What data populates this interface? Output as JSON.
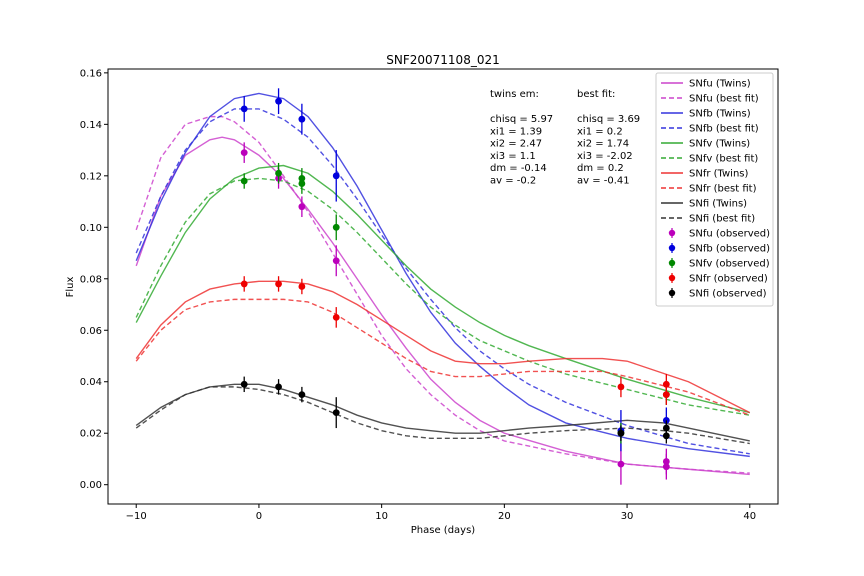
{
  "chart_data": {
    "type": "line",
    "title": "SNF20071108_021",
    "xlabel": "Phase (days)",
    "ylabel": "Flux",
    "xlim": [
      -12.3,
      42.3
    ],
    "ylim": [
      -0.0075,
      0.1615
    ],
    "xticks": [
      -10,
      0,
      10,
      20,
      30,
      40
    ],
    "yticks": [
      0.0,
      0.02,
      0.04,
      0.06,
      0.08,
      0.1,
      0.12,
      0.14,
      0.16
    ],
    "grid": false,
    "legend_position": "top-right",
    "annotations": {
      "left_title": "twins em:",
      "left_lines": [
        "chisq = 5.97",
        "xi1 = 1.39",
        "xi2 = 2.47",
        "xi3 = 1.1",
        "dm = -0.14",
        "av = -0.2"
      ],
      "right_title": "best fit:",
      "right_lines": [
        "chisq = 3.69",
        "xi1 = 0.2",
        "xi2 = 1.74",
        "xi3 = -2.02",
        "dm = 0.2",
        "av = -0.41"
      ]
    },
    "series": [
      {
        "name": "SNfu (Twins)",
        "color": "#cc44cc",
        "style": "solid",
        "x": [
          -10,
          -8,
          -6,
          -4,
          -3,
          -2,
          0,
          2,
          4,
          6,
          8,
          10,
          12,
          14,
          16,
          18,
          20,
          25,
          30,
          35,
          40
        ],
        "y": [
          0.085,
          0.112,
          0.128,
          0.134,
          0.135,
          0.134,
          0.128,
          0.119,
          0.107,
          0.094,
          0.08,
          0.066,
          0.053,
          0.041,
          0.032,
          0.025,
          0.02,
          0.013,
          0.008,
          0.006,
          0.004
        ]
      },
      {
        "name": "SNfu (best fit)",
        "color": "#cc44cc",
        "style": "dashed",
        "x": [
          -10,
          -8,
          -6,
          -4,
          -3,
          -2,
          0,
          2,
          4,
          6,
          8,
          10,
          12,
          14,
          16,
          18,
          20,
          25,
          30,
          35,
          40
        ],
        "y": [
          0.099,
          0.127,
          0.14,
          0.143,
          0.143,
          0.141,
          0.133,
          0.12,
          0.106,
          0.09,
          0.074,
          0.058,
          0.045,
          0.035,
          0.027,
          0.021,
          0.017,
          0.012,
          0.008,
          0.006,
          0.0045
        ]
      },
      {
        "name": "SNfb (Twins)",
        "color": "#3333dd",
        "style": "solid",
        "x": [
          -10,
          -8,
          -6,
          -4,
          -2,
          0,
          2,
          4,
          6,
          8,
          10,
          12,
          14,
          16,
          18,
          20,
          22,
          25,
          30,
          35,
          40
        ],
        "y": [
          0.087,
          0.11,
          0.129,
          0.143,
          0.15,
          0.152,
          0.15,
          0.143,
          0.131,
          0.116,
          0.099,
          0.082,
          0.067,
          0.055,
          0.046,
          0.038,
          0.031,
          0.024,
          0.018,
          0.014,
          0.011
        ]
      },
      {
        "name": "SNfb (best fit)",
        "color": "#3333dd",
        "style": "dashed",
        "x": [
          -10,
          -8,
          -6,
          -4,
          -2,
          0,
          2,
          4,
          6,
          8,
          10,
          12,
          14,
          16,
          18,
          20,
          22,
          25,
          30,
          35,
          40
        ],
        "y": [
          0.09,
          0.112,
          0.13,
          0.141,
          0.146,
          0.146,
          0.142,
          0.135,
          0.124,
          0.111,
          0.097,
          0.084,
          0.072,
          0.061,
          0.052,
          0.045,
          0.039,
          0.032,
          0.023,
          0.016,
          0.012
        ]
      },
      {
        "name": "SNfv (Twins)",
        "color": "#33aa33",
        "style": "solid",
        "x": [
          -10,
          -8,
          -6,
          -4,
          -2,
          0,
          2,
          4,
          6,
          8,
          10,
          12,
          14,
          16,
          18,
          20,
          22,
          25,
          30,
          35,
          40
        ],
        "y": [
          0.063,
          0.081,
          0.098,
          0.111,
          0.119,
          0.123,
          0.124,
          0.121,
          0.114,
          0.105,
          0.095,
          0.085,
          0.076,
          0.069,
          0.063,
          0.058,
          0.054,
          0.049,
          0.041,
          0.034,
          0.028
        ]
      },
      {
        "name": "SNfv (best fit)",
        "color": "#33aa33",
        "style": "dashed",
        "x": [
          -10,
          -8,
          -6,
          -4,
          -2,
          0,
          2,
          4,
          6,
          8,
          10,
          12,
          14,
          16,
          18,
          20,
          22,
          25,
          30,
          35,
          40
        ],
        "y": [
          0.065,
          0.085,
          0.102,
          0.113,
          0.118,
          0.119,
          0.118,
          0.114,
          0.107,
          0.098,
          0.088,
          0.078,
          0.069,
          0.062,
          0.056,
          0.052,
          0.048,
          0.043,
          0.037,
          0.031,
          0.027
        ]
      },
      {
        "name": "SNfr (Twins)",
        "color": "#ee3333",
        "style": "solid",
        "x": [
          -10,
          -8,
          -6,
          -4,
          -2,
          0,
          2,
          4,
          6,
          8,
          10,
          12,
          14,
          16,
          18,
          20,
          22,
          25,
          28,
          30,
          35,
          40
        ],
        "y": [
          0.049,
          0.062,
          0.071,
          0.076,
          0.078,
          0.079,
          0.079,
          0.078,
          0.075,
          0.07,
          0.064,
          0.058,
          0.052,
          0.048,
          0.047,
          0.047,
          0.048,
          0.049,
          0.049,
          0.048,
          0.04,
          0.028
        ]
      },
      {
        "name": "SNfr (best fit)",
        "color": "#ee3333",
        "style": "dashed",
        "x": [
          -10,
          -8,
          -6,
          -4,
          -2,
          0,
          2,
          4,
          6,
          8,
          10,
          12,
          14,
          16,
          18,
          20,
          22,
          25,
          28,
          30,
          35,
          40
        ],
        "y": [
          0.048,
          0.06,
          0.068,
          0.071,
          0.072,
          0.072,
          0.072,
          0.071,
          0.067,
          0.061,
          0.055,
          0.049,
          0.044,
          0.042,
          0.042,
          0.043,
          0.044,
          0.044,
          0.044,
          0.042,
          0.036,
          0.027
        ]
      },
      {
        "name": "SNfi (Twins)",
        "color": "#333333",
        "style": "solid",
        "x": [
          -10,
          -8,
          -6,
          -4,
          -2,
          0,
          2,
          4,
          6,
          8,
          10,
          12,
          14,
          16,
          18,
          20,
          22,
          25,
          30,
          33,
          35,
          40
        ],
        "y": [
          0.023,
          0.03,
          0.035,
          0.038,
          0.039,
          0.039,
          0.037,
          0.034,
          0.031,
          0.027,
          0.024,
          0.022,
          0.021,
          0.02,
          0.02,
          0.021,
          0.022,
          0.023,
          0.025,
          0.024,
          0.022,
          0.017
        ]
      },
      {
        "name": "SNfi (best fit)",
        "color": "#333333",
        "style": "dashed",
        "x": [
          -10,
          -8,
          -6,
          -4,
          -2,
          0,
          2,
          4,
          6,
          8,
          10,
          12,
          14,
          16,
          18,
          20,
          22,
          25,
          30,
          33,
          35,
          40
        ],
        "y": [
          0.022,
          0.029,
          0.035,
          0.038,
          0.038,
          0.037,
          0.035,
          0.032,
          0.028,
          0.024,
          0.021,
          0.019,
          0.018,
          0.018,
          0.018,
          0.019,
          0.02,
          0.021,
          0.022,
          0.021,
          0.02,
          0.016
        ]
      }
    ],
    "observed": [
      {
        "name": "SNfu (observed)",
        "color": "#bb00bb",
        "points": [
          [
            -1.2,
            0.129,
            0.004
          ],
          [
            1.6,
            0.119,
            0.004
          ],
          [
            3.5,
            0.108,
            0.004
          ],
          [
            6.3,
            0.087,
            0.006
          ],
          [
            29.5,
            0.008,
            0.008
          ],
          [
            33.2,
            0.009,
            0.005
          ],
          [
            33.2,
            0.007,
            0.005
          ]
        ]
      },
      {
        "name": "SNfb (observed)",
        "color": "#0000dd",
        "points": [
          [
            -1.2,
            0.146,
            0.005
          ],
          [
            1.6,
            0.149,
            0.005
          ],
          [
            3.5,
            0.142,
            0.006
          ],
          [
            6.3,
            0.12,
            0.01
          ],
          [
            29.5,
            0.021,
            0.008
          ],
          [
            33.2,
            0.025,
            0.005
          ]
        ]
      },
      {
        "name": "SNfv (observed)",
        "color": "#008800",
        "points": [
          [
            -1.2,
            0.118,
            0.003
          ],
          [
            1.6,
            0.121,
            0.004
          ],
          [
            3.5,
            0.119,
            0.004
          ],
          [
            3.5,
            0.117,
            0.004
          ],
          [
            6.3,
            0.1,
            0.005
          ],
          [
            29.5,
            0.02,
            0.004
          ],
          [
            33.2,
            0.035,
            0.004
          ]
        ]
      },
      {
        "name": "SNfr (observed)",
        "color": "#ee0000",
        "points": [
          [
            -1.2,
            0.078,
            0.003
          ],
          [
            1.6,
            0.078,
            0.003
          ],
          [
            3.5,
            0.077,
            0.003
          ],
          [
            6.3,
            0.065,
            0.004
          ],
          [
            29.5,
            0.038,
            0.004
          ],
          [
            33.2,
            0.039,
            0.004
          ],
          [
            33.2,
            0.035,
            0.004
          ]
        ]
      },
      {
        "name": "SNfi (observed)",
        "color": "#000000",
        "points": [
          [
            -1.2,
            0.039,
            0.003
          ],
          [
            1.6,
            0.038,
            0.003
          ],
          [
            3.5,
            0.035,
            0.003
          ],
          [
            6.3,
            0.028,
            0.006
          ],
          [
            29.5,
            0.02,
            0.003
          ],
          [
            33.2,
            0.022,
            0.003
          ],
          [
            33.2,
            0.019,
            0.003
          ]
        ]
      }
    ]
  }
}
